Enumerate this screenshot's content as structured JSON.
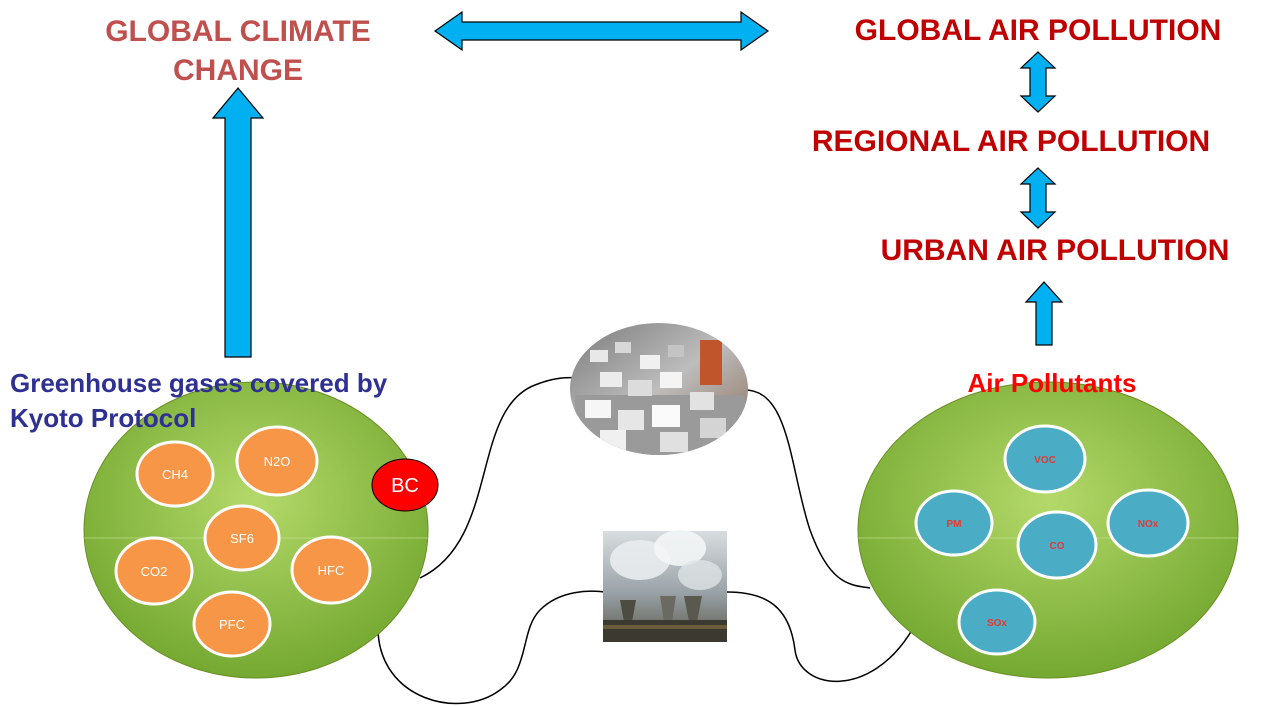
{
  "titles": {
    "global_climate_line1": "GLOBAL CLIMATE",
    "global_climate_line2": "CHANGE",
    "global_air": "GLOBAL AIR POLLUTION",
    "regional_air": "REGIONAL AIR POLLUTION",
    "urban_air": "URBAN AIR POLLUTION"
  },
  "greenhouse": {
    "label_line1": "Greenhouse gases covered by",
    "label_line2": "Kyoto Protocol",
    "gases": [
      "CH4",
      "N2O",
      "SF6",
      "CO2",
      "HFC",
      "PFC"
    ],
    "extra": "BC"
  },
  "pollutants": {
    "label": "Air Pollutants",
    "items": [
      "VOC",
      "PM",
      "CO",
      "NOx",
      "SOx"
    ]
  },
  "colors": {
    "climate_title": "#c0504d",
    "air_titles": "#c00000",
    "greenhouse_label": "#2e3192",
    "pollutants_label": "#ff0000",
    "arrow_fill": "#00b0f0",
    "big_circle": "#8dc63f",
    "gas_circle": "#f79646",
    "pollutant_circle": "#4bacc6",
    "bc_circle": "#ff0000"
  }
}
